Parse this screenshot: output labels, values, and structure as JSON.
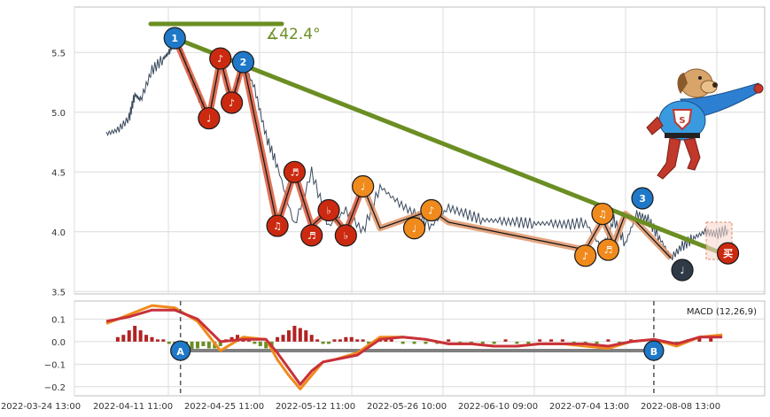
{
  "chart_data": [
    {
      "type": "line",
      "panel": "price",
      "y_ticks": [
        "3.5",
        "4.0",
        "4.5",
        "5.0",
        "5.5"
      ],
      "ylim": [
        3.48,
        5.88
      ],
      "x_ticks": [
        "2022-03-24 13:00",
        "2022-04-11 11:00",
        "2022-04-25 11:00",
        "2022-05-12 11:00",
        "2022-05-26 10:00",
        "2022-06-10 09:00",
        "2022-07-04 13:00",
        "2022-08-08 13:00"
      ],
      "grid": true,
      "price_series": {
        "x": [
          0,
          2,
          4,
          5,
          6,
          8,
          10,
          11,
          12,
          13,
          14,
          16,
          18,
          20,
          22,
          24,
          26,
          28,
          30,
          33,
          36,
          39,
          42,
          45,
          48,
          51,
          54,
          57,
          60,
          63,
          66,
          69,
          72,
          75,
          78,
          81,
          84,
          87,
          89,
          91,
          93,
          95,
          97,
          99,
          101,
          103,
          105,
          107,
          109
        ],
        "y": [
          4.82,
          4.85,
          4.95,
          5.15,
          5.1,
          5.35,
          5.45,
          5.5,
          5.62,
          5.55,
          5.4,
          5.15,
          4.95,
          5.45,
          5.08,
          5.42,
          5.2,
          4.8,
          4.55,
          4.05,
          4.5,
          4.05,
          4.18,
          4.0,
          4.38,
          4.25,
          4.15,
          4.05,
          4.2,
          4.15,
          4.1,
          4.09,
          4.08,
          4.07,
          4.07,
          4.06,
          4.08,
          3.85,
          4.1,
          3.9,
          4.15,
          4.1,
          3.95,
          3.78,
          3.88,
          3.95,
          4.0,
          3.98,
          4.02
        ]
      },
      "zigzag": {
        "x": [
          12,
          18,
          20,
          22,
          24,
          30,
          33,
          36,
          39,
          42,
          45,
          48,
          57,
          60,
          84,
          87,
          89,
          91,
          93,
          99
        ],
        "y": [
          5.62,
          4.95,
          5.45,
          5.08,
          5.42,
          4.05,
          4.5,
          4.05,
          4.18,
          4.0,
          4.38,
          4.03,
          4.18,
          4.08,
          3.85,
          4.1,
          3.9,
          4.15,
          4.08,
          3.78
        ]
      },
      "trend_line": {
        "x": [
          12,
          109
        ],
        "y": [
          5.62,
          3.8
        ]
      },
      "angle_label": "∡42.4°",
      "badges": [
        {
          "label": "1",
          "x": 12,
          "y": 5.62,
          "color": "#1f78c8"
        },
        {
          "label": "♩",
          "x": 18,
          "y": 4.95,
          "color": "#cc2a10"
        },
        {
          "label": "♪",
          "x": 20,
          "y": 5.45,
          "color": "#cc2a10"
        },
        {
          "label": "♪",
          "x": 22,
          "y": 5.08,
          "color": "#cc2a10"
        },
        {
          "label": "2",
          "x": 24,
          "y": 5.42,
          "color": "#1f78c8"
        },
        {
          "label": "♫",
          "x": 30,
          "y": 4.05,
          "color": "#cc2a10"
        },
        {
          "label": "♬",
          "x": 33,
          "y": 4.5,
          "color": "#cc2a10"
        },
        {
          "label": "♬",
          "x": 36,
          "y": 3.97,
          "color": "#cc2a10"
        },
        {
          "label": "♭",
          "x": 39,
          "y": 4.18,
          "color": "#cc2a10"
        },
        {
          "label": "♭",
          "x": 42,
          "y": 3.97,
          "color": "#cc2a10"
        },
        {
          "label": "♩",
          "x": 45,
          "y": 4.38,
          "color": "#f08a1c"
        },
        {
          "label": "♩",
          "x": 54,
          "y": 4.03,
          "color": "#f08a1c"
        },
        {
          "label": "♪",
          "x": 57,
          "y": 4.18,
          "color": "#f08a1c"
        },
        {
          "label": "♪",
          "x": 84,
          "y": 3.8,
          "color": "#f08a1c"
        },
        {
          "label": "♫",
          "x": 87,
          "y": 4.15,
          "color": "#f08a1c"
        },
        {
          "label": "♬",
          "x": 88,
          "y": 3.85,
          "color": "#f08a1c"
        },
        {
          "label": "3",
          "x": 94,
          "y": 4.28,
          "color": "#1f78c8"
        },
        {
          "label": "♩",
          "x": 101,
          "y": 3.68,
          "color": "#2f3a48"
        },
        {
          "label": "买",
          "x": 109,
          "y": 3.82,
          "color": "#cc2a10"
        }
      ]
    },
    {
      "type": "line",
      "panel": "macd",
      "legend": "MACD (12,26,9)",
      "y_ticks": [
        "0.1",
        "0.0",
        "−0.1",
        "−0.2"
      ],
      "ylim": [
        -0.24,
        0.18
      ],
      "grid": true,
      "dif": {
        "x": [
          0,
          4,
          8,
          12,
          16,
          20,
          24,
          28,
          30,
          32,
          34,
          36,
          38,
          40,
          44,
          48,
          52,
          56,
          60,
          64,
          68,
          72,
          76,
          80,
          84,
          88,
          92,
          96,
          100,
          104,
          108
        ],
        "y": [
          0.08,
          0.12,
          0.16,
          0.15,
          0.09,
          -0.04,
          0.02,
          0.01,
          -0.08,
          -0.15,
          -0.21,
          -0.15,
          -0.09,
          -0.08,
          -0.05,
          0.02,
          0.02,
          0.01,
          -0.01,
          -0.01,
          -0.02,
          -0.02,
          -0.01,
          -0.01,
          -0.02,
          -0.03,
          0.0,
          0.01,
          -0.02,
          0.02,
          0.03
        ]
      },
      "dea": {
        "x": [
          0,
          4,
          8,
          12,
          16,
          20,
          24,
          28,
          30,
          32,
          34,
          36,
          38,
          40,
          44,
          48,
          52,
          56,
          60,
          64,
          68,
          72,
          76,
          80,
          84,
          88,
          92,
          96,
          100,
          104,
          108
        ],
        "y": [
          0.09,
          0.11,
          0.14,
          0.14,
          0.1,
          0.0,
          0.01,
          0.01,
          -0.05,
          -0.12,
          -0.19,
          -0.13,
          -0.09,
          -0.08,
          -0.06,
          0.01,
          0.02,
          0.01,
          -0.01,
          -0.01,
          -0.02,
          -0.02,
          -0.01,
          -0.01,
          -0.01,
          -0.02,
          0.0,
          0.01,
          -0.01,
          0.02,
          0.02
        ]
      },
      "histogram": {
        "x": [
          2,
          3,
          4,
          5,
          6,
          7,
          8,
          9,
          10,
          11,
          12,
          13,
          14,
          15,
          16,
          17,
          18,
          19,
          20,
          21,
          22,
          23,
          24,
          25,
          26,
          27,
          28,
          29,
          30,
          31,
          32,
          33,
          34,
          35,
          36,
          37,
          38,
          39,
          40,
          41,
          42,
          43,
          44,
          45,
          46,
          47,
          48,
          49,
          50,
          52,
          54,
          56,
          58,
          60,
          62,
          64,
          66,
          68,
          70,
          72,
          74,
          76,
          78,
          80,
          82,
          84,
          86,
          88,
          90,
          92,
          94,
          96,
          98,
          100,
          102,
          104,
          106
        ],
        "y": [
          0.02,
          0.03,
          0.05,
          0.07,
          0.05,
          0.03,
          0.02,
          0.01,
          0.01,
          -0.01,
          -0.02,
          -0.03,
          -0.04,
          -0.04,
          -0.03,
          -0.02,
          -0.03,
          -0.03,
          -0.02,
          0.01,
          0.02,
          0.03,
          0.02,
          0.01,
          -0.01,
          -0.02,
          -0.03,
          -0.02,
          0.02,
          0.03,
          0.05,
          0.07,
          0.06,
          0.05,
          0.03,
          0.01,
          -0.01,
          -0.01,
          0.01,
          0.01,
          0.02,
          0.02,
          0.01,
          0.01,
          -0.01,
          -0.01,
          0.01,
          0.01,
          0.01,
          -0.01,
          -0.01,
          -0.01,
          -0.01,
          0.01,
          -0.01,
          -0.01,
          -0.01,
          -0.01,
          0.01,
          -0.01,
          -0.01,
          0.01,
          0.01,
          0.01,
          -0.02,
          -0.01,
          -0.01,
          0.01,
          -0.01,
          0.01,
          0.01,
          0.01,
          -0.01,
          -0.01,
          0.01,
          0.02,
          0.02
        ]
      },
      "level_line": {
        "x": [
          13,
          96
        ],
        "y": [
          -0.04,
          -0.04
        ]
      },
      "markers": [
        {
          "label": "A",
          "x": 13
        },
        {
          "label": "B",
          "x": 96
        }
      ]
    }
  ],
  "colors": {
    "price_line": "#3b4a5e",
    "trend_line": "#6b8e23",
    "zigzag_outer": "#d9583a",
    "zigzag_inner": "#1a1a1a",
    "zigzag_outer_late": "#e0956a",
    "dif": "#f08a1c",
    "dea": "#c8313a",
    "hist_pos": "#b22222",
    "hist_neg": "#6b8e23",
    "level_line": "#808080",
    "marker_fill": "#1f78c8",
    "grid": "#dcdcdc",
    "axis": "#bfbfbf"
  },
  "mascot": {
    "icon": "superhero-dog-mascot-icon"
  }
}
